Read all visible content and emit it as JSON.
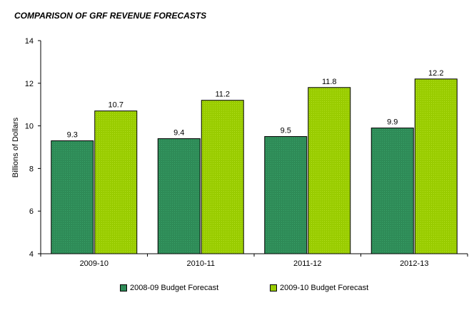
{
  "chart_data": {
    "type": "bar",
    "title": "COMPARISON OF GRF REVENUE FORECASTS",
    "ylabel": "Billions of Dollars",
    "xlabel": "",
    "categories": [
      "2009-10",
      "2010-11",
      "2011-12",
      "2012-13"
    ],
    "series": [
      {
        "name": "2008-09 Budget Forecast",
        "values": [
          9.3,
          9.4,
          9.5,
          9.9
        ],
        "color": "#2e8b57",
        "labels": [
          "9.3",
          "9.4",
          "9.5",
          "9.9"
        ]
      },
      {
        "name": "2009-10 Budget Forecast",
        "values": [
          10.7,
          11.2,
          11.8,
          12.2
        ],
        "color": "#99cc00",
        "labels": [
          "10.7",
          "11.2",
          "11.8",
          "12.2"
        ]
      }
    ],
    "ylim": [
      4,
      14
    ],
    "yticks": [
      "4",
      "6",
      "8",
      "10",
      "12",
      "14"
    ],
    "grid": false,
    "legend_position": "bottom"
  }
}
